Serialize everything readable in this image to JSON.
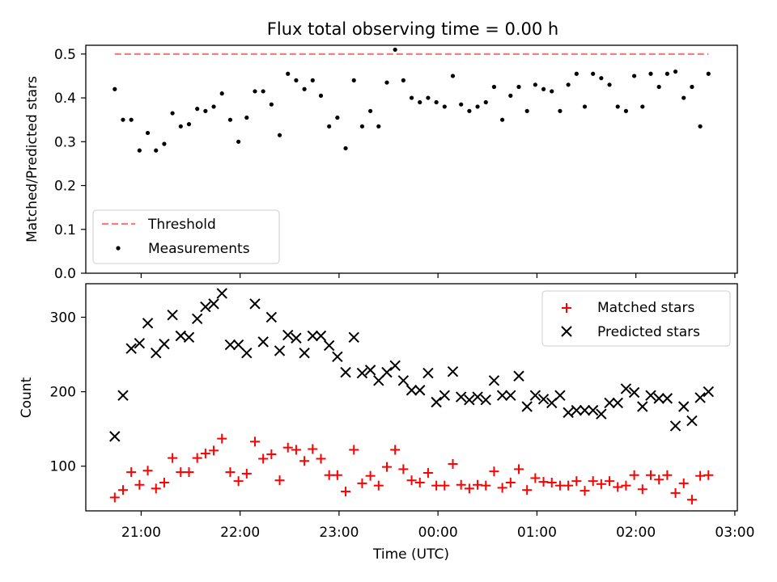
{
  "chart_data": [
    {
      "type": "scatter",
      "title": "Flux total observing time = 0.00 h",
      "xlabel": "",
      "ylabel": "Matched/Predicted stars",
      "ylim": [
        0,
        0.52
      ],
      "yticks": [
        "0.0",
        "0.1",
        "0.2",
        "0.3",
        "0.4",
        "0.5"
      ],
      "xticks_shared": true,
      "legend_position": "lower-left",
      "series": [
        {
          "name": "Threshold",
          "kind": "dashed-line",
          "color": "#f08080",
          "x": [
            "20:44",
            "02:44"
          ],
          "y": [
            0.5,
            0.5
          ]
        },
        {
          "name": "Measurements",
          "kind": "dots",
          "color": "#000000",
          "x": [
            "20:44",
            "20:49",
            "20:54",
            "20:59",
            "21:04",
            "21:09",
            "21:14",
            "21:19",
            "21:24",
            "21:29",
            "21:34",
            "21:39",
            "21:44",
            "21:49",
            "21:54",
            "21:59",
            "22:04",
            "22:09",
            "22:14",
            "22:19",
            "22:24",
            "22:29",
            "22:34",
            "22:39",
            "22:44",
            "22:49",
            "22:54",
            "22:59",
            "23:04",
            "23:09",
            "23:14",
            "23:19",
            "23:24",
            "23:29",
            "23:34",
            "23:39",
            "23:44",
            "23:49",
            "23:54",
            "23:59",
            "00:04",
            "00:09",
            "00:14",
            "00:19",
            "00:24",
            "00:29",
            "00:34",
            "00:39",
            "00:44",
            "00:49",
            "00:54",
            "00:59",
            "01:04",
            "01:09",
            "01:14",
            "01:19",
            "01:24",
            "01:29",
            "01:34",
            "01:39",
            "01:44",
            "01:49",
            "01:54",
            "01:59",
            "02:04",
            "02:09",
            "02:14",
            "02:19",
            "02:24",
            "02:29",
            "02:34",
            "02:39",
            "02:44"
          ],
          "y": [
            0.42,
            0.35,
            0.35,
            0.28,
            0.32,
            0.28,
            0.295,
            0.365,
            0.335,
            0.34,
            0.375,
            0.37,
            0.38,
            0.41,
            0.35,
            0.3,
            0.355,
            0.415,
            0.415,
            0.385,
            0.315,
            0.455,
            0.44,
            0.42,
            0.44,
            0.405,
            0.335,
            0.355,
            0.285,
            0.44,
            0.335,
            0.37,
            0.335,
            0.435,
            0.51,
            0.44,
            0.4,
            0.39,
            0.4,
            0.39,
            0.38,
            0.45,
            0.385,
            0.37,
            0.38,
            0.39,
            0.425,
            0.35,
            0.405,
            0.425,
            0.37,
            0.43,
            0.42,
            0.415,
            0.37,
            0.43,
            0.455,
            0.38,
            0.455,
            0.445,
            0.43,
            0.38,
            0.37,
            0.45,
            0.38,
            0.455,
            0.425,
            0.455,
            0.46,
            0.4,
            0.425,
            0.335,
            0.455
          ]
        }
      ]
    },
    {
      "type": "scatter",
      "title": "",
      "xlabel": "Time (UTC)",
      "ylabel": "Count",
      "ylim": [
        40,
        345
      ],
      "yticks": [
        "100",
        "200",
        "300"
      ],
      "xticks": [
        "21:00",
        "22:00",
        "23:00",
        "00:00",
        "01:00",
        "02:00",
        "03:00"
      ],
      "legend_position": "top-right",
      "series": [
        {
          "name": "Matched stars",
          "marker": "+",
          "color": "#ff0000",
          "y": [
            58,
            68,
            92,
            75,
            94,
            70,
            78,
            111,
            92,
            92,
            111,
            117,
            121,
            137,
            92,
            80,
            90,
            133,
            110,
            116,
            81,
            125,
            122,
            107,
            123,
            110,
            88,
            88,
            66,
            122,
            77,
            87,
            74,
            99,
            122,
            96,
            81,
            78,
            91,
            74,
            74,
            103,
            75,
            70,
            75,
            74,
            93,
            71,
            78,
            96,
            68,
            84,
            79,
            78,
            74,
            74,
            80,
            67,
            80,
            76,
            80,
            72,
            74,
            88,
            69,
            88,
            82,
            88,
            64,
            77,
            55,
            87,
            88
          ]
        },
        {
          "name": "Predicted stars",
          "marker": "x",
          "color": "#000000",
          "y": [
            140,
            195,
            258,
            265,
            292,
            252,
            264,
            303,
            275,
            273,
            298,
            314,
            318,
            332,
            263,
            263,
            252,
            318,
            267,
            300,
            255,
            276,
            272,
            252,
            275,
            275,
            262,
            247,
            226,
            273,
            225,
            229,
            215,
            226,
            235,
            215,
            202,
            202,
            225,
            186,
            195,
            227,
            193,
            189,
            193,
            189,
            215,
            195,
            195,
            221,
            180,
            195,
            190,
            185,
            195,
            172,
            175,
            175,
            175,
            170,
            185,
            185,
            204,
            199,
            180,
            195,
            191,
            191,
            154,
            180,
            161,
            192,
            200
          ]
        }
      ]
    }
  ]
}
